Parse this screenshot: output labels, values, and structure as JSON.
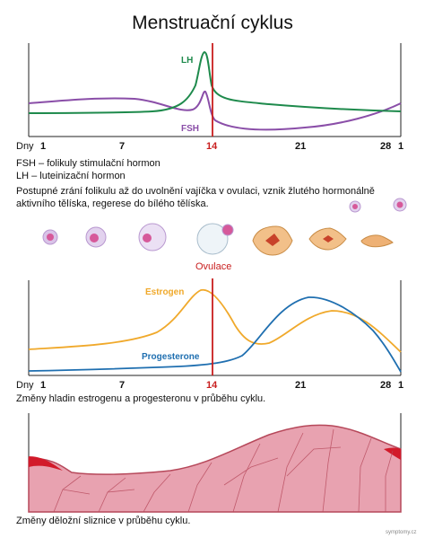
{
  "title": "Menstruační cyklus",
  "hormone_chart": {
    "labels": {
      "lh": "LH",
      "fsh": "FSH"
    },
    "colors": {
      "lh": "#1e8a4c",
      "fsh": "#8a4ea8",
      "ovulation_line": "#c81e1e"
    }
  },
  "axis": {
    "prefix": "Dny",
    "ticks": [
      "1",
      "7",
      "14",
      "21",
      "28",
      "1"
    ]
  },
  "legend": {
    "fsh_line": "FSH – folikuly stimulační hormon",
    "lh_line": "LH – luteinizační hormon"
  },
  "follicle_text": "Postupné zrání folikulu až do uvolnění vajíčka v ovulaci, vznik žlutého hormonálně aktivního tělíska, regerese do bílého tělíska.",
  "ovulation_label": "Ovulace",
  "steroid_chart": {
    "labels": {
      "estrogen": "Estrogen",
      "progesterone": "Progesterone"
    },
    "colors": {
      "estrogen": "#f0a92b",
      "progesterone": "#1f6fb0"
    }
  },
  "steroid_caption": "Změny hladin estrogenu a progesteronu v průběhu cyklu.",
  "endometrium_caption": "Změny děložní sliznice v průběhu cyklu.",
  "watermark": "symptomy.cz"
}
